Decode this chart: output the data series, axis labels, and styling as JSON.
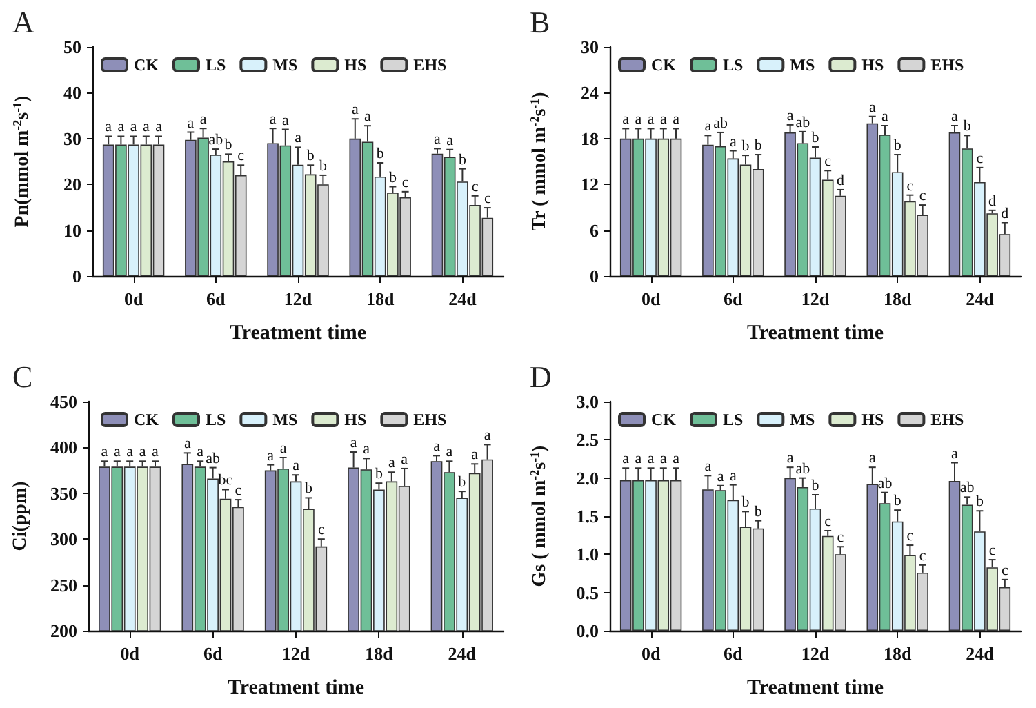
{
  "chart_data": [
    {
      "type": "bar",
      "title": "A",
      "xlabel": "Treatment time",
      "ylabel": "Pn(mmol m$^{-2}$s$^{-1}$)",
      "categories": [
        "0d",
        "6d",
        "12d",
        "18d",
        "24d"
      ],
      "ylim": [
        0,
        50
      ],
      "yticks": [
        0,
        10,
        20,
        30,
        40,
        50
      ],
      "grid": false,
      "legend": "top",
      "series": [
        {
          "name": "CK",
          "color": "#8e8fb8",
          "values": [
            28.7,
            29.7,
            29,
            30,
            26.7
          ],
          "errors": [
            1.8,
            1.7,
            3.2,
            4.3,
            1.1
          ],
          "value_labels": [
            "a",
            "a",
            "a",
            "a",
            "a"
          ]
        },
        {
          "name": "LS",
          "color": "#6fbf98",
          "values": [
            28.7,
            30.2,
            28.5,
            29.3,
            26
          ],
          "errors": [
            1.8,
            2,
            3.5,
            3.5,
            1.6
          ],
          "value_labels": [
            "a",
            "a",
            "a",
            "a",
            "a"
          ]
        },
        {
          "name": "MS",
          "color": "#d8f1fb",
          "values": [
            28.7,
            26.5,
            24.3,
            21.7,
            20.6
          ],
          "errors": [
            1.8,
            1.2,
            3.8,
            3,
            2.8
          ],
          "value_labels": [
            "a",
            "ab",
            "a",
            "b",
            "b"
          ]
        },
        {
          "name": "HS",
          "color": "#dcebd0",
          "values": [
            28.7,
            25,
            22.2,
            18.2,
            15.5
          ],
          "errors": [
            1.8,
            1.6,
            2,
            1.3,
            2
          ],
          "value_labels": [
            "a",
            "b",
            "b",
            "b",
            "c"
          ]
        },
        {
          "name": "EHS",
          "color": "#d5d5d5",
          "values": [
            28.7,
            22,
            20,
            17.2,
            12.7
          ],
          "errors": [
            1.8,
            2.2,
            2,
            1.2,
            2.2
          ],
          "value_labels": [
            "a",
            "c",
            "b",
            "c",
            "c"
          ]
        }
      ]
    },
    {
      "type": "bar",
      "title": "B",
      "xlabel": "Treatment time",
      "ylabel": "Tr ( mmol m$^{-2}$s$^{-1}$)",
      "categories": [
        "0d",
        "6d",
        "12d",
        "18d",
        "24d"
      ],
      "ylim": [
        0,
        30
      ],
      "yticks": [
        0,
        6,
        12,
        18,
        24,
        30
      ],
      "grid": false,
      "legend": "top",
      "series": [
        {
          "name": "CK",
          "color": "#8e8fb8",
          "values": [
            18,
            17.2,
            18.8,
            20,
            18.8
          ],
          "errors": [
            1.3,
            1.2,
            1,
            0.9,
            0.9
          ],
          "value_labels": [
            "a",
            "a",
            "a",
            "a",
            "a"
          ]
        },
        {
          "name": "LS",
          "color": "#6fbf98",
          "values": [
            18,
            17,
            17.4,
            18.5,
            16.7
          ],
          "errors": [
            1.3,
            1.8,
            1.5,
            1.2,
            1.7
          ],
          "value_labels": [
            "a",
            "ab",
            "ab",
            "a",
            "b"
          ]
        },
        {
          "name": "MS",
          "color": "#d8f1fb",
          "values": [
            18,
            15.4,
            15.5,
            13.6,
            12.3
          ],
          "errors": [
            1.3,
            1,
            1.4,
            2.3,
            1.9
          ],
          "value_labels": [
            "a",
            "a",
            "b",
            "b",
            "c"
          ]
        },
        {
          "name": "HS",
          "color": "#dcebd0",
          "values": [
            18,
            14.6,
            12.6,
            9.8,
            8.2
          ],
          "errors": [
            1.3,
            1.2,
            1.2,
            0.8,
            0.4
          ],
          "value_labels": [
            "a",
            "b",
            "c",
            "c",
            "d"
          ]
        },
        {
          "name": "EHS",
          "color": "#d5d5d5",
          "values": [
            18,
            14,
            10.5,
            8,
            5.5
          ],
          "errors": [
            1.3,
            1.9,
            0.8,
            1.3,
            1.5
          ],
          "value_labels": [
            "a",
            "b",
            "d",
            "c",
            "d"
          ]
        }
      ]
    },
    {
      "type": "bar",
      "title": "C",
      "xlabel": "Treatment time",
      "ylabel": "Ci(ppm)",
      "categories": [
        "0d",
        "6d",
        "12d",
        "18d",
        "24d"
      ],
      "ylim": [
        200,
        450
      ],
      "yticks": [
        200,
        250,
        300,
        350,
        400,
        450
      ],
      "grid": false,
      "legend": "top",
      "series": [
        {
          "name": "CK",
          "color": "#8e8fb8",
          "values": [
            379,
            382,
            375,
            378,
            385
          ],
          "errors": [
            6,
            12,
            6,
            17,
            6
          ],
          "value_labels": [
            "a",
            "a",
            "a",
            "a",
            "a"
          ]
        },
        {
          "name": "LS",
          "color": "#6fbf98",
          "values": [
            379,
            379,
            377,
            376,
            373
          ],
          "errors": [
            6,
            6,
            12,
            12,
            12
          ],
          "value_labels": [
            "a",
            "a",
            "a",
            "a",
            "a"
          ]
        },
        {
          "name": "MS",
          "color": "#d8f1fb",
          "values": [
            379,
            366,
            363,
            354,
            345
          ],
          "errors": [
            6,
            12,
            7,
            7,
            7
          ],
          "value_labels": [
            "a",
            "ab",
            "a",
            "b",
            "b"
          ]
        },
        {
          "name": "HS",
          "color": "#dcebd0",
          "values": [
            379,
            344,
            333,
            363,
            372
          ],
          "errors": [
            6,
            10,
            12,
            10,
            10
          ],
          "value_labels": [
            "a",
            "bc",
            "b",
            "a",
            "a"
          ]
        },
        {
          "name": "EHS",
          "color": "#d5d5d5",
          "values": [
            379,
            335,
            292,
            358,
            387
          ],
          "errors": [
            6,
            8,
            8,
            19,
            16
          ],
          "value_labels": [
            "a",
            "c",
            "c",
            "a",
            "a"
          ]
        }
      ]
    },
    {
      "type": "bar",
      "title": "D",
      "xlabel": "Treatment time",
      "ylabel": "Gs ( mmol m$^{-2}$s$^{-1}$)",
      "categories": [
        "0d",
        "6d",
        "12d",
        "18d",
        "24d"
      ],
      "ylim": [
        0,
        3
      ],
      "yticks": [
        {
          "value": 0,
          "label": "0.0"
        },
        {
          "value": 0.5,
          "label": "0.5"
        },
        {
          "value": 1,
          "label": "1.0"
        },
        {
          "value": 1.5,
          "label": "1.5"
        },
        {
          "value": 2,
          "label": "2.0"
        },
        {
          "value": 2.5,
          "label": "2.5"
        },
        {
          "value": 3,
          "label": "3.0"
        }
      ],
      "grid": false,
      "legend": "top",
      "series": [
        {
          "name": "CK",
          "color": "#8e8fb8",
          "values": [
            1.97,
            1.85,
            2,
            1.92,
            1.96
          ],
          "errors": [
            0.16,
            0.18,
            0.14,
            0.22,
            0.24
          ],
          "value_labels": [
            "a",
            "a",
            "a",
            "a",
            "a"
          ]
        },
        {
          "name": "LS",
          "color": "#6fbf98",
          "values": [
            1.97,
            1.84,
            1.88,
            1.67,
            1.65
          ],
          "errors": [
            0.16,
            0.06,
            0.12,
            0.14,
            0.1
          ],
          "value_labels": [
            "a",
            "a",
            "ab",
            "ab",
            "ab"
          ]
        },
        {
          "name": "MS",
          "color": "#d8f1fb",
          "values": [
            1.97,
            1.71,
            1.6,
            1.43,
            1.3
          ],
          "errors": [
            0.16,
            0.2,
            0.18,
            0.15,
            0.27
          ],
          "value_labels": [
            "a",
            "a",
            "b",
            "b",
            "b"
          ]
        },
        {
          "name": "HS",
          "color": "#dcebd0",
          "values": [
            1.97,
            1.36,
            1.24,
            0.99,
            0.83
          ],
          "errors": [
            0.16,
            0.2,
            0.07,
            0.13,
            0.1
          ],
          "value_labels": [
            "a",
            "b",
            "c",
            "c",
            "c"
          ]
        },
        {
          "name": "EHS",
          "color": "#d5d5d5",
          "values": [
            1.97,
            1.34,
            1,
            0.76,
            0.57
          ],
          "errors": [
            0.16,
            0.1,
            0.1,
            0.1,
            0.1
          ],
          "value_labels": [
            "a",
            "b",
            "c",
            "c",
            "c"
          ]
        }
      ]
    }
  ]
}
